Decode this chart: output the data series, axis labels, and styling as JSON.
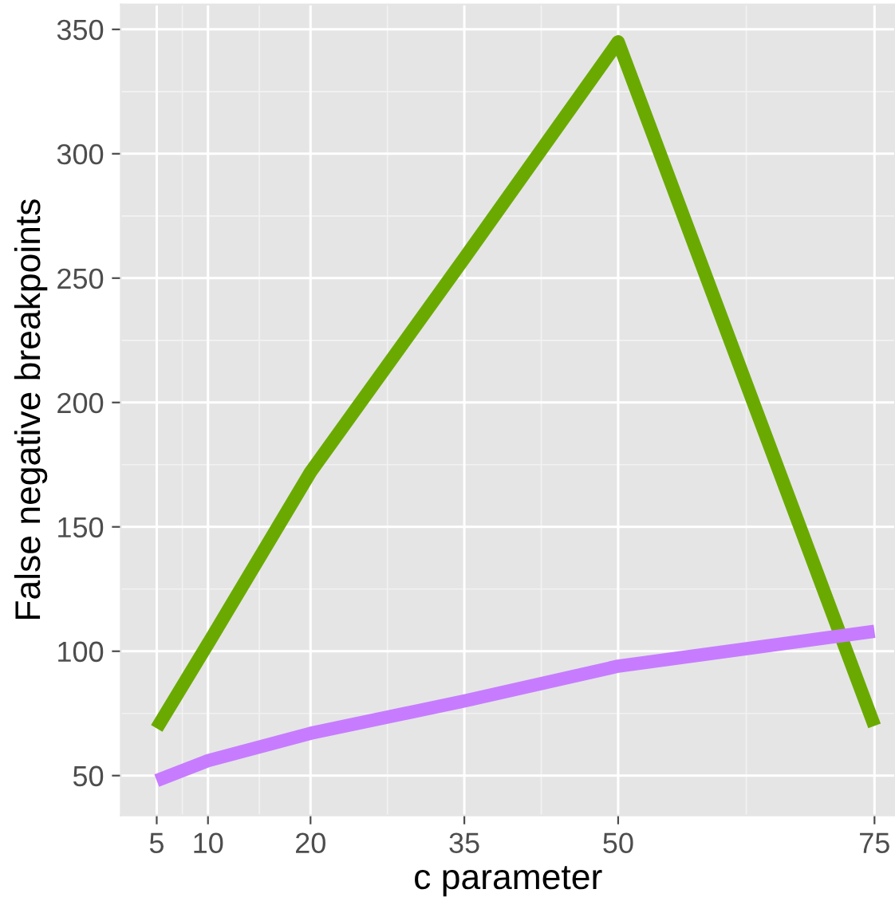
{
  "chart_data": {
    "type": "line",
    "xlabel": "c parameter",
    "ylabel": "False negative breakpoints",
    "x": [
      5,
      10,
      20,
      35,
      50,
      75
    ],
    "series": [
      {
        "color": "#6aaa00",
        "values": [
          69,
          103,
          172,
          258,
          345,
          70
        ]
      },
      {
        "color": "#c77cff",
        "values": [
          48,
          56,
          67,
          80,
          94,
          108
        ]
      }
    ],
    "xlim": [
      1.5,
      77
    ],
    "ylim": [
      34,
      360
    ],
    "xticks": [
      5,
      10,
      20,
      35,
      50,
      75
    ],
    "yticks": [
      50,
      100,
      150,
      200,
      250,
      300,
      350
    ],
    "grid": true,
    "legend": false,
    "marker": "none",
    "line_style": "solid"
  }
}
